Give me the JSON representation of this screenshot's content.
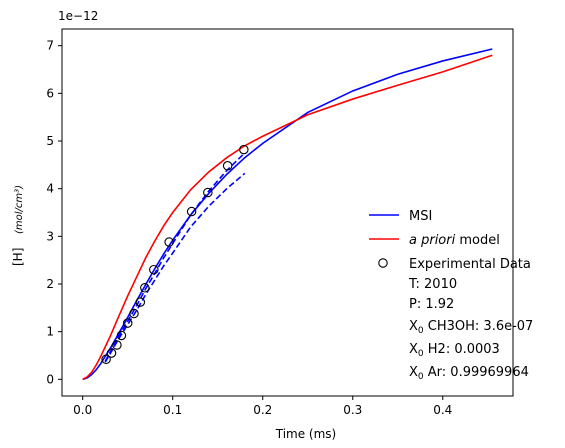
{
  "chart_data": {
    "type": "line",
    "xlabel": "Time (ms)",
    "ylabel": "[H]",
    "ylabel_units": "(mol/cm³)",
    "offset_text": "1e−12",
    "xlim": [
      -0.023,
      0.478
    ],
    "ylim": [
      -0.35,
      7.35
    ],
    "x_ticks": [
      0.0,
      0.1,
      0.2,
      0.3,
      0.4
    ],
    "x_tick_labels": [
      "0.0",
      "0.1",
      "0.2",
      "0.3",
      "0.4"
    ],
    "y_ticks": [
      0,
      1,
      2,
      3,
      4,
      5,
      6,
      7
    ],
    "y_tick_labels": [
      "0",
      "1",
      "2",
      "3",
      "4",
      "5",
      "6",
      "7"
    ],
    "grid": false,
    "legend_position": "lower-right",
    "series": [
      {
        "name": "MSI",
        "style": "solid",
        "color": "#0000ff",
        "x": [
          0.0,
          0.005,
          0.01,
          0.015,
          0.02,
          0.03,
          0.04,
          0.05,
          0.06,
          0.07,
          0.08,
          0.09,
          0.1,
          0.12,
          0.14,
          0.16,
          0.18,
          0.2,
          0.25,
          0.3,
          0.35,
          0.4,
          0.455
        ],
        "y": [
          0.0,
          0.03,
          0.1,
          0.2,
          0.33,
          0.63,
          0.96,
          1.3,
          1.65,
          1.99,
          2.32,
          2.63,
          2.92,
          3.45,
          3.9,
          4.3,
          4.65,
          4.95,
          5.6,
          6.05,
          6.4,
          6.68,
          6.93
        ]
      },
      {
        "name": "a priori model",
        "name_prefix": "a priori",
        "name_suffix": " model",
        "style": "solid",
        "color": "#ff0000",
        "x": [
          0.0,
          0.005,
          0.01,
          0.015,
          0.02,
          0.03,
          0.04,
          0.05,
          0.06,
          0.07,
          0.08,
          0.09,
          0.1,
          0.12,
          0.14,
          0.16,
          0.18,
          0.2,
          0.25,
          0.3,
          0.35,
          0.4,
          0.455
        ],
        "y": [
          0.0,
          0.05,
          0.15,
          0.3,
          0.48,
          0.88,
          1.32,
          1.75,
          2.15,
          2.55,
          2.9,
          3.22,
          3.5,
          3.98,
          4.35,
          4.65,
          4.9,
          5.1,
          5.55,
          5.88,
          6.17,
          6.45,
          6.8
        ]
      },
      {
        "style": "dashed",
        "color": "#0000ff",
        "x": [
          0.025,
          0.03,
          0.04,
          0.05,
          0.06,
          0.07,
          0.08,
          0.09,
          0.1,
          0.12,
          0.14,
          0.16,
          0.18
        ],
        "y": [
          0.38,
          0.55,
          0.9,
          1.22,
          1.55,
          1.9,
          2.22,
          2.55,
          2.85,
          3.45,
          3.95,
          4.38,
          4.75
        ]
      },
      {
        "style": "dashed",
        "color": "#0000ff",
        "x": [
          0.025,
          0.03,
          0.04,
          0.05,
          0.06,
          0.07,
          0.08,
          0.09,
          0.1,
          0.12,
          0.14,
          0.16,
          0.18
        ],
        "y": [
          0.36,
          0.52,
          0.85,
          1.15,
          1.45,
          1.78,
          2.08,
          2.38,
          2.65,
          3.2,
          3.63,
          4.0,
          4.32
        ]
      }
    ],
    "scatter": {
      "name": "Experimental Data",
      "marker": "open-circle",
      "x": [
        0.026,
        0.032,
        0.038,
        0.043,
        0.05,
        0.057,
        0.064,
        0.069,
        0.079,
        0.096,
        0.121,
        0.139,
        0.161,
        0.179
      ],
      "y": [
        0.42,
        0.55,
        0.72,
        0.92,
        1.18,
        1.38,
        1.62,
        1.92,
        2.3,
        2.88,
        3.52,
        3.92,
        4.48,
        4.82
      ]
    },
    "annotations": [
      {
        "key": "t",
        "label": "T: 2010"
      },
      {
        "key": "p",
        "label": "P: 1.92"
      },
      {
        "key": "ch3oh",
        "label_prefix": "X",
        "label_sub": "0",
        "label_rest": " CH3OH: 3.6e-07"
      },
      {
        "key": "h2",
        "label_prefix": "X",
        "label_sub": "0",
        "label_rest": " H2: 0.0003"
      },
      {
        "key": "ar",
        "label_prefix": "X",
        "label_sub": "0",
        "label_rest": " Ar: 0.99969964"
      }
    ]
  }
}
